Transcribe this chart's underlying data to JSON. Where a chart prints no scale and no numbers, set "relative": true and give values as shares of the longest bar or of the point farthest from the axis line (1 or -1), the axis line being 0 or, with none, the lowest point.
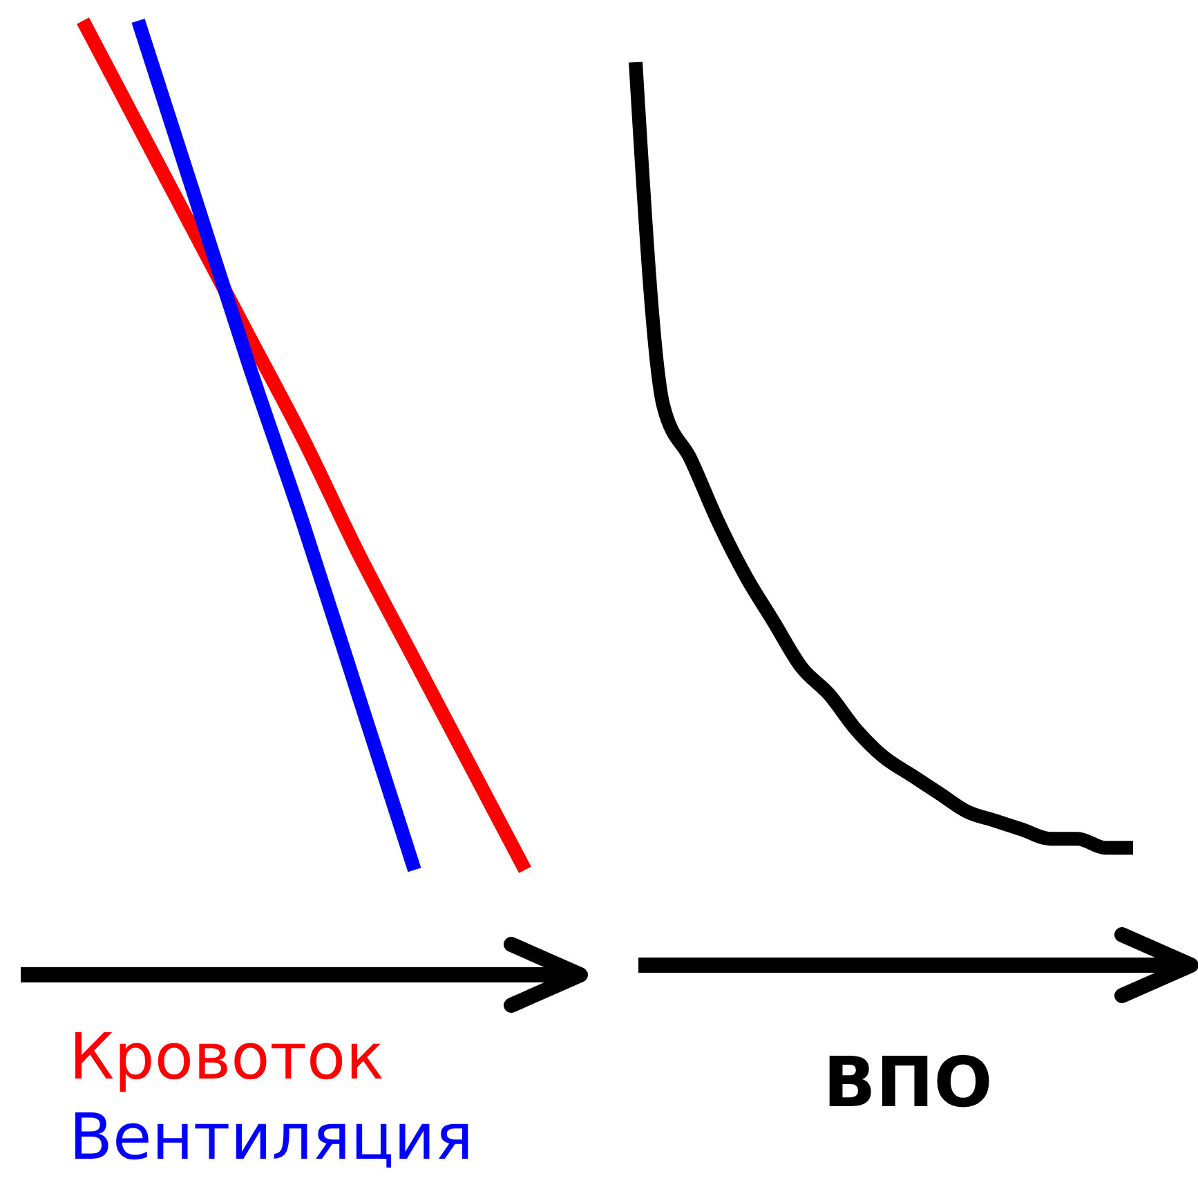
{
  "chart_data": [
    {
      "type": "line",
      "relative": true,
      "categories": [
        null,
        null,
        null,
        null,
        null,
        null,
        null,
        null,
        null
      ],
      "legend": "bottom",
      "line_style": "solid",
      "marker": "none",
      "series": [
        {
          "name": "Кровоток",
          "color": "#ff0000",
          "values": [
            1,
            0.89,
            0.78,
            0.67,
            0.56,
            0.44,
            0.33,
            0.22,
            0.11
          ]
        },
        {
          "name": "Вентиляция",
          "color": "#0000ff",
          "values": [
            null,
            1,
            0.82,
            0.64,
            0.47,
            0.29,
            0.11,
            null,
            null
          ]
        }
      ]
    },
    {
      "type": "line",
      "relative": true,
      "xlabel": "ВПО",
      "categories": [
        null,
        null,
        null,
        null,
        null,
        null,
        null,
        null,
        null,
        null,
        null,
        null,
        null,
        null,
        null,
        null,
        null,
        null,
        null
      ],
      "line_style": "solid",
      "marker": "none",
      "series": [
        {
          "color": "#000000",
          "values": [
            1,
            0.62,
            0.56,
            0.49,
            0.43,
            0.38,
            0.33,
            0.3,
            0.26,
            0.23,
            0.21,
            0.19,
            0.17,
            0.16,
            0.15,
            0.14,
            0.14,
            0.13,
            0.13
          ]
        }
      ]
    }
  ]
}
